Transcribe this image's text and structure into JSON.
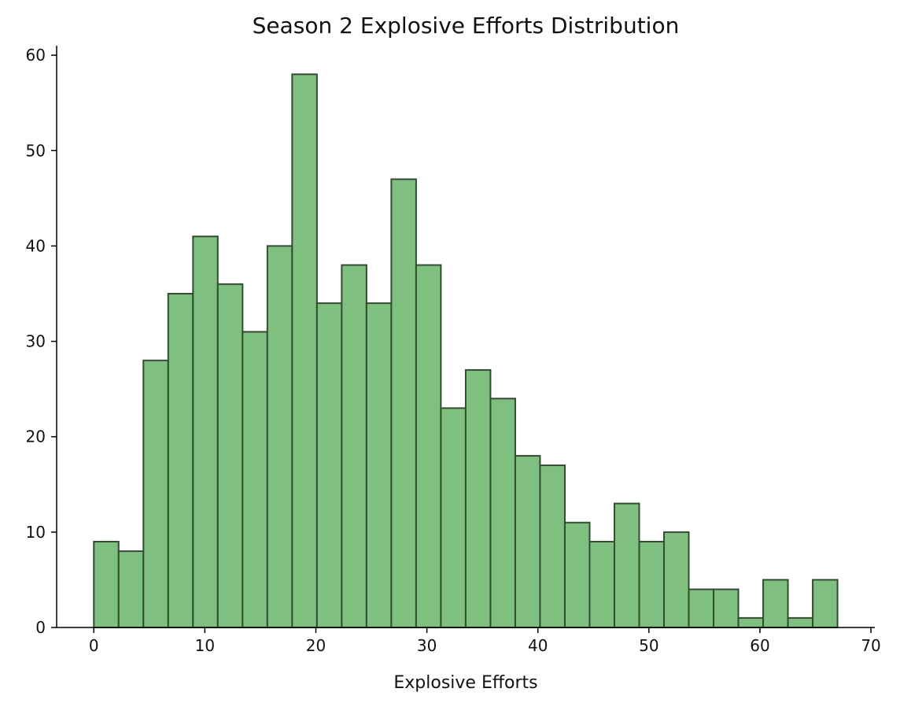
{
  "chart_data": {
    "type": "bar",
    "title": "Season 2 Explosive Efforts Distribution",
    "xlabel": "Explosive Efforts",
    "ylabel": "",
    "bin_start": 0,
    "bin_width": 2.233,
    "values": [
      9,
      8,
      28,
      35,
      41,
      36,
      31,
      40,
      58,
      34,
      38,
      34,
      47,
      38,
      23,
      27,
      24,
      18,
      17,
      11,
      9,
      13,
      9,
      10,
      4,
      4,
      1,
      5,
      1,
      5
    ],
    "xlim": [
      -3.35,
      70.35
    ],
    "ylim": [
      0,
      61
    ],
    "xticks": [
      0,
      10,
      20,
      30,
      40,
      50,
      60,
      70
    ],
    "yticks": [
      0,
      10,
      20,
      30,
      40,
      50,
      60
    ],
    "colors": {
      "bar_fill": "#7fbf7f",
      "bar_edge": "#2f4f2f"
    },
    "grid": false
  }
}
